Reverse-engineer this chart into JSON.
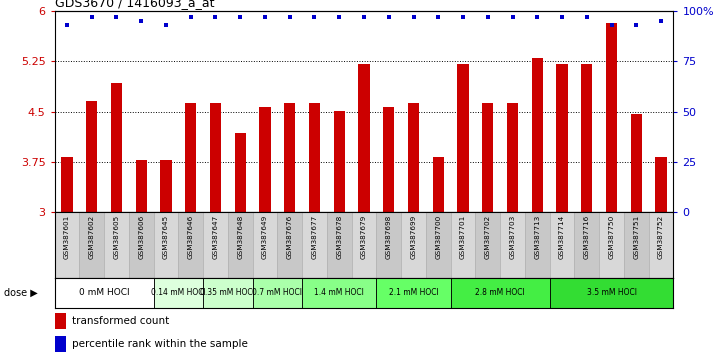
{
  "title": "GDS3670 / 1416093_a_at",
  "samples": [
    "GSM387601",
    "GSM387602",
    "GSM387605",
    "GSM387606",
    "GSM387645",
    "GSM387646",
    "GSM387647",
    "GSM387648",
    "GSM387649",
    "GSM387676",
    "GSM387677",
    "GSM387678",
    "GSM387679",
    "GSM387698",
    "GSM387699",
    "GSM387700",
    "GSM387701",
    "GSM387702",
    "GSM387703",
    "GSM387713",
    "GSM387714",
    "GSM387716",
    "GSM387750",
    "GSM387751",
    "GSM387752"
  ],
  "bar_values": [
    3.82,
    4.65,
    4.93,
    3.78,
    3.78,
    4.62,
    4.63,
    4.18,
    4.56,
    4.62,
    4.63,
    4.51,
    5.2,
    4.57,
    4.62,
    3.83,
    5.2,
    4.63,
    4.63,
    5.3,
    5.21,
    5.21,
    5.82,
    4.47,
    3.82
  ],
  "percentile_values": [
    93,
    97,
    97,
    95,
    93,
    97,
    97,
    97,
    97,
    97,
    97,
    97,
    97,
    97,
    97,
    97,
    97,
    97,
    97,
    97,
    97,
    97,
    93,
    93,
    95
  ],
  "bar_color": "#cc0000",
  "percentile_color": "#0000cc",
  "ylim_left": [
    3.0,
    6.0
  ],
  "yticks_left": [
    3.0,
    3.75,
    4.5,
    5.25,
    6.0
  ],
  "ytick_labels_left": [
    "3",
    "3.75",
    "4.5",
    "5.25",
    "6"
  ],
  "yticks_right": [
    0,
    25,
    50,
    75,
    100
  ],
  "ytick_labels_right": [
    "0",
    "25",
    "50",
    "75",
    "100%"
  ],
  "dose_groups": [
    {
      "label": "0 mM HOCl",
      "start": 0,
      "end": 4,
      "color": "#ffffff"
    },
    {
      "label": "0.14 mM HOCl",
      "start": 4,
      "end": 6,
      "color": "#ddffdd"
    },
    {
      "label": "0.35 mM HOCl",
      "start": 6,
      "end": 8,
      "color": "#ccffcc"
    },
    {
      "label": "0.7 mM HOCl",
      "start": 8,
      "end": 10,
      "color": "#aaffaa"
    },
    {
      "label": "1.4 mM HOCl",
      "start": 10,
      "end": 13,
      "color": "#88ff88"
    },
    {
      "label": "2.1 mM HOCl",
      "start": 13,
      "end": 16,
      "color": "#66ff66"
    },
    {
      "label": "2.8 mM HOCl",
      "start": 16,
      "end": 20,
      "color": "#44ee44"
    },
    {
      "label": "3.5 mM HOCl",
      "start": 20,
      "end": 25,
      "color": "#33dd33"
    }
  ],
  "legend_items": [
    {
      "label": "transformed count",
      "color": "#cc0000"
    },
    {
      "label": "percentile rank within the sample",
      "color": "#0000cc"
    }
  ],
  "background_color": "#ffffff"
}
